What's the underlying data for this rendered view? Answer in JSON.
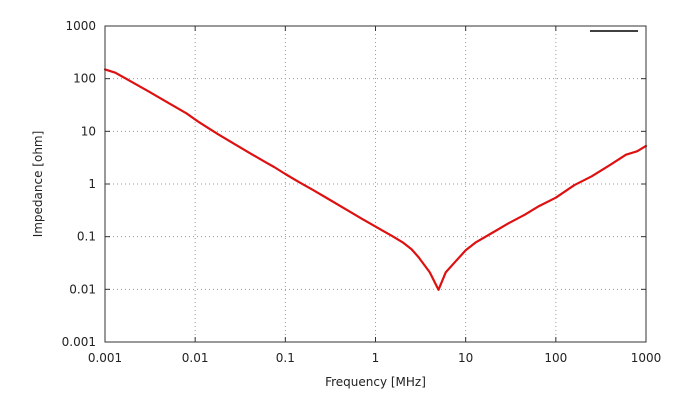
{
  "chart_data": {
    "type": "line",
    "title": "",
    "xlabel": "Frequency [MHz]",
    "ylabel": "Impedance [ohm]",
    "x_scale": "log",
    "y_scale": "log",
    "xlim": [
      0.001,
      1000
    ],
    "ylim": [
      0.001,
      1000
    ],
    "grid": true,
    "legend": "top-right",
    "x_ticks": [
      0.001,
      0.01,
      0.1,
      1,
      10,
      100,
      1000
    ],
    "x_tick_labels": [
      "0.001",
      "0.01",
      "0.1",
      "1",
      "10",
      "100",
      "1000"
    ],
    "y_ticks": [
      0.001,
      0.01,
      0.1,
      1,
      10,
      100,
      1000
    ],
    "y_tick_labels": [
      "0.001",
      "0.01",
      "0.1",
      "1",
      "10",
      "100",
      "1000"
    ],
    "series": [
      {
        "color": "#dd1111",
        "legend_color": "#000000",
        "x": [
          0.001,
          0.0013,
          0.0018,
          0.003,
          0.005,
          0.008,
          0.011,
          0.014,
          0.018,
          0.025,
          0.04,
          0.06,
          0.075,
          0.1,
          0.14,
          0.2,
          0.3,
          0.5,
          0.7,
          1,
          1.5,
          2,
          2.5,
          3,
          4,
          5,
          6,
          7.5,
          10,
          13,
          20,
          30,
          45,
          65,
          100,
          160,
          250,
          400,
          600,
          800,
          1000
        ],
        "y": [
          150,
          130,
          95,
          58,
          35,
          22,
          15,
          11.5,
          8.8,
          6.3,
          3.9,
          2.6,
          2.1,
          1.55,
          1.1,
          0.78,
          0.52,
          0.31,
          0.22,
          0.155,
          0.105,
          0.078,
          0.058,
          0.041,
          0.021,
          0.0098,
          0.021,
          0.032,
          0.055,
          0.078,
          0.12,
          0.18,
          0.26,
          0.38,
          0.55,
          0.95,
          1.4,
          2.3,
          3.6,
          4.2,
          5.3
        ]
      }
    ]
  }
}
